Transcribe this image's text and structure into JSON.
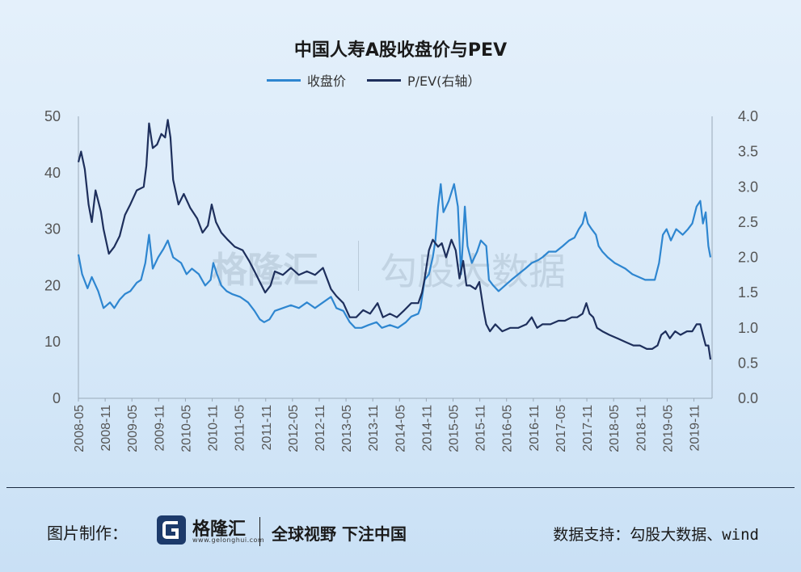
{
  "chart_data": {
    "type": "line",
    "title": "中国人寿A股收盘价与PEV",
    "x_ticks": [
      "2008-05",
      "2008-11",
      "2009-05",
      "2009-11",
      "2010-05",
      "2010-11",
      "2011-05",
      "2011-11",
      "2012-05",
      "2012-11",
      "2013-05",
      "2013-11",
      "2014-05",
      "2014-11",
      "2015-05",
      "2015-11",
      "2016-05",
      "2016-11",
      "2017-05",
      "2017-11",
      "2018-05",
      "2018-11",
      "2019-05",
      "2019-11"
    ],
    "y_left": {
      "ticks": [
        "0",
        "10",
        "20",
        "30",
        "40",
        "50"
      ],
      "ylim": [
        0,
        50
      ]
    },
    "y_right": {
      "ticks": [
        "0.0",
        "0.5",
        "1.0",
        "1.5",
        "2.0",
        "2.5",
        "3.0",
        "3.5",
        "4.0"
      ],
      "ylim": [
        0,
        4.0
      ]
    },
    "x_range": [
      2008.33,
      2020.17
    ],
    "grid": false,
    "legend_position": "top",
    "series": [
      {
        "name": "收盘价",
        "axis": "left",
        "color": "#2e86d0",
        "points": [
          [
            2008.33,
            25.5
          ],
          [
            2008.4,
            22
          ],
          [
            2008.5,
            19.5
          ],
          [
            2008.58,
            21.5
          ],
          [
            2008.7,
            19
          ],
          [
            2008.8,
            16
          ],
          [
            2008.92,
            17
          ],
          [
            2009.0,
            16
          ],
          [
            2009.1,
            17.5
          ],
          [
            2009.2,
            18.5
          ],
          [
            2009.3,
            19
          ],
          [
            2009.42,
            20.5
          ],
          [
            2009.5,
            21
          ],
          [
            2009.58,
            24
          ],
          [
            2009.65,
            29
          ],
          [
            2009.72,
            23
          ],
          [
            2009.82,
            25
          ],
          [
            2009.92,
            26.5
          ],
          [
            2010.0,
            28
          ],
          [
            2010.1,
            25
          ],
          [
            2010.25,
            24
          ],
          [
            2010.35,
            22
          ],
          [
            2010.45,
            23
          ],
          [
            2010.58,
            22
          ],
          [
            2010.7,
            20
          ],
          [
            2010.8,
            21
          ],
          [
            2010.85,
            24
          ],
          [
            2010.92,
            22
          ],
          [
            2011.0,
            20
          ],
          [
            2011.1,
            19
          ],
          [
            2011.2,
            18.5
          ],
          [
            2011.35,
            18
          ],
          [
            2011.5,
            17
          ],
          [
            2011.62,
            15.5
          ],
          [
            2011.72,
            14
          ],
          [
            2011.8,
            13.5
          ],
          [
            2011.9,
            14
          ],
          [
            2012.0,
            15.5
          ],
          [
            2012.15,
            16
          ],
          [
            2012.3,
            16.5
          ],
          [
            2012.45,
            16
          ],
          [
            2012.6,
            17
          ],
          [
            2012.75,
            16
          ],
          [
            2012.9,
            17
          ],
          [
            2013.05,
            18
          ],
          [
            2013.15,
            16
          ],
          [
            2013.28,
            15.5
          ],
          [
            2013.4,
            13.5
          ],
          [
            2013.5,
            12.5
          ],
          [
            2013.62,
            12.5
          ],
          [
            2013.75,
            13
          ],
          [
            2013.9,
            13.5
          ],
          [
            2014.0,
            12.5
          ],
          [
            2014.15,
            13
          ],
          [
            2014.3,
            12.5
          ],
          [
            2014.45,
            13.5
          ],
          [
            2014.55,
            14.5
          ],
          [
            2014.68,
            15
          ],
          [
            2014.72,
            16
          ],
          [
            2014.8,
            21
          ],
          [
            2014.88,
            22
          ],
          [
            2014.95,
            25
          ],
          [
            2015.0,
            28
          ],
          [
            2015.05,
            34
          ],
          [
            2015.1,
            38
          ],
          [
            2015.15,
            33
          ],
          [
            2015.25,
            35
          ],
          [
            2015.35,
            38
          ],
          [
            2015.42,
            34
          ],
          [
            2015.48,
            22
          ],
          [
            2015.55,
            34
          ],
          [
            2015.6,
            27
          ],
          [
            2015.68,
            24
          ],
          [
            2015.78,
            26
          ],
          [
            2015.85,
            28
          ],
          [
            2015.95,
            27
          ],
          [
            2016.0,
            21
          ],
          [
            2016.08,
            20
          ],
          [
            2016.18,
            19
          ],
          [
            2016.3,
            20
          ],
          [
            2016.42,
            21
          ],
          [
            2016.55,
            22
          ],
          [
            2016.68,
            23
          ],
          [
            2016.8,
            24
          ],
          [
            2016.92,
            24.5
          ],
          [
            2017.0,
            25
          ],
          [
            2017.12,
            26
          ],
          [
            2017.25,
            26
          ],
          [
            2017.38,
            27
          ],
          [
            2017.5,
            28
          ],
          [
            2017.6,
            28.5
          ],
          [
            2017.68,
            30
          ],
          [
            2017.75,
            31
          ],
          [
            2017.8,
            33
          ],
          [
            2017.85,
            31
          ],
          [
            2017.92,
            30
          ],
          [
            2018.0,
            29
          ],
          [
            2018.05,
            27
          ],
          [
            2018.12,
            26
          ],
          [
            2018.22,
            25
          ],
          [
            2018.35,
            24
          ],
          [
            2018.45,
            23.5
          ],
          [
            2018.55,
            23
          ],
          [
            2018.68,
            22
          ],
          [
            2018.8,
            21.5
          ],
          [
            2018.92,
            21
          ],
          [
            2019.02,
            21
          ],
          [
            2019.1,
            21
          ],
          [
            2019.18,
            24
          ],
          [
            2019.25,
            29
          ],
          [
            2019.32,
            30
          ],
          [
            2019.4,
            28
          ],
          [
            2019.5,
            30
          ],
          [
            2019.62,
            29
          ],
          [
            2019.72,
            30
          ],
          [
            2019.8,
            31
          ],
          [
            2019.88,
            34
          ],
          [
            2019.95,
            35
          ],
          [
            2020.0,
            31
          ],
          [
            2020.05,
            33
          ],
          [
            2020.1,
            27
          ],
          [
            2020.14,
            25
          ]
        ]
      },
      {
        "name": "P/EV(右轴)",
        "axis": "right",
        "color": "#1e2f5c",
        "points": [
          [
            2008.33,
            3.35
          ],
          [
            2008.38,
            3.5
          ],
          [
            2008.45,
            3.25
          ],
          [
            2008.52,
            2.75
          ],
          [
            2008.58,
            2.5
          ],
          [
            2008.65,
            2.95
          ],
          [
            2008.75,
            2.65
          ],
          [
            2008.8,
            2.4
          ],
          [
            2008.9,
            2.05
          ],
          [
            2009.0,
            2.15
          ],
          [
            2009.1,
            2.3
          ],
          [
            2009.2,
            2.6
          ],
          [
            2009.3,
            2.75
          ],
          [
            2009.42,
            2.95
          ],
          [
            2009.55,
            3.0
          ],
          [
            2009.6,
            3.3
          ],
          [
            2009.65,
            3.9
          ],
          [
            2009.72,
            3.55
          ],
          [
            2009.8,
            3.6
          ],
          [
            2009.88,
            3.75
          ],
          [
            2009.95,
            3.7
          ],
          [
            2010.0,
            3.95
          ],
          [
            2010.05,
            3.7
          ],
          [
            2010.1,
            3.1
          ],
          [
            2010.2,
            2.75
          ],
          [
            2010.3,
            2.9
          ],
          [
            2010.42,
            2.7
          ],
          [
            2010.55,
            2.55
          ],
          [
            2010.65,
            2.35
          ],
          [
            2010.75,
            2.45
          ],
          [
            2010.82,
            2.75
          ],
          [
            2010.9,
            2.5
          ],
          [
            2011.0,
            2.35
          ],
          [
            2011.12,
            2.25
          ],
          [
            2011.25,
            2.15
          ],
          [
            2011.4,
            2.1
          ],
          [
            2011.52,
            1.95
          ],
          [
            2011.62,
            1.8
          ],
          [
            2011.72,
            1.65
          ],
          [
            2011.82,
            1.5
          ],
          [
            2011.92,
            1.6
          ],
          [
            2012.0,
            1.8
          ],
          [
            2012.15,
            1.75
          ],
          [
            2012.3,
            1.85
          ],
          [
            2012.45,
            1.75
          ],
          [
            2012.6,
            1.8
          ],
          [
            2012.75,
            1.75
          ],
          [
            2012.9,
            1.85
          ],
          [
            2013.05,
            1.55
          ],
          [
            2013.15,
            1.45
          ],
          [
            2013.28,
            1.35
          ],
          [
            2013.4,
            1.15
          ],
          [
            2013.52,
            1.15
          ],
          [
            2013.65,
            1.25
          ],
          [
            2013.78,
            1.2
          ],
          [
            2013.92,
            1.35
          ],
          [
            2014.02,
            1.15
          ],
          [
            2014.15,
            1.2
          ],
          [
            2014.28,
            1.15
          ],
          [
            2014.42,
            1.25
          ],
          [
            2014.55,
            1.35
          ],
          [
            2014.68,
            1.35
          ],
          [
            2014.75,
            1.5
          ],
          [
            2014.8,
            1.7
          ],
          [
            2014.88,
            2.1
          ],
          [
            2014.95,
            2.25
          ],
          [
            2015.05,
            2.15
          ],
          [
            2015.12,
            2.2
          ],
          [
            2015.2,
            2.0
          ],
          [
            2015.3,
            2.25
          ],
          [
            2015.38,
            2.1
          ],
          [
            2015.45,
            1.7
          ],
          [
            2015.52,
            1.95
          ],
          [
            2015.58,
            1.6
          ],
          [
            2015.65,
            1.6
          ],
          [
            2015.75,
            1.55
          ],
          [
            2015.82,
            1.65
          ],
          [
            2015.9,
            1.25
          ],
          [
            2015.95,
            1.05
          ],
          [
            2016.02,
            0.95
          ],
          [
            2016.12,
            1.05
          ],
          [
            2016.25,
            0.95
          ],
          [
            2016.4,
            1.0
          ],
          [
            2016.55,
            1.0
          ],
          [
            2016.7,
            1.05
          ],
          [
            2016.8,
            1.15
          ],
          [
            2016.9,
            1.0
          ],
          [
            2017.0,
            1.05
          ],
          [
            2017.15,
            1.05
          ],
          [
            2017.3,
            1.1
          ],
          [
            2017.42,
            1.1
          ],
          [
            2017.55,
            1.15
          ],
          [
            2017.65,
            1.15
          ],
          [
            2017.75,
            1.2
          ],
          [
            2017.82,
            1.35
          ],
          [
            2017.88,
            1.2
          ],
          [
            2017.95,
            1.15
          ],
          [
            2018.02,
            1.0
          ],
          [
            2018.12,
            0.95
          ],
          [
            2018.25,
            0.9
          ],
          [
            2018.4,
            0.85
          ],
          [
            2018.55,
            0.8
          ],
          [
            2018.7,
            0.75
          ],
          [
            2018.82,
            0.75
          ],
          [
            2018.95,
            0.7
          ],
          [
            2019.05,
            0.7
          ],
          [
            2019.15,
            0.75
          ],
          [
            2019.22,
            0.9
          ],
          [
            2019.3,
            0.95
          ],
          [
            2019.38,
            0.85
          ],
          [
            2019.48,
            0.95
          ],
          [
            2019.58,
            0.9
          ],
          [
            2019.7,
            0.95
          ],
          [
            2019.8,
            0.95
          ],
          [
            2019.88,
            1.05
          ],
          [
            2019.95,
            1.05
          ],
          [
            2020.0,
            0.9
          ],
          [
            2020.05,
            0.75
          ],
          [
            2020.1,
            0.75
          ],
          [
            2020.14,
            0.55
          ]
        ]
      }
    ]
  },
  "legend": {
    "items": [
      "收盘价",
      "P/EV(右轴）"
    ]
  },
  "watermark": {
    "left": "格隆汇",
    "right": "勾股大数据"
  },
  "footer": {
    "made_by_label": "图片制作：",
    "brand_name": "格隆汇",
    "brand_url": "www.gelonghui.com",
    "slogan": "全球视野 下注中国",
    "source": "数据支持：勾股大数据、wind"
  },
  "colors": {
    "price": "#2e86d0",
    "pev": "#1e2f5c",
    "axis": "#9aa9b8"
  }
}
